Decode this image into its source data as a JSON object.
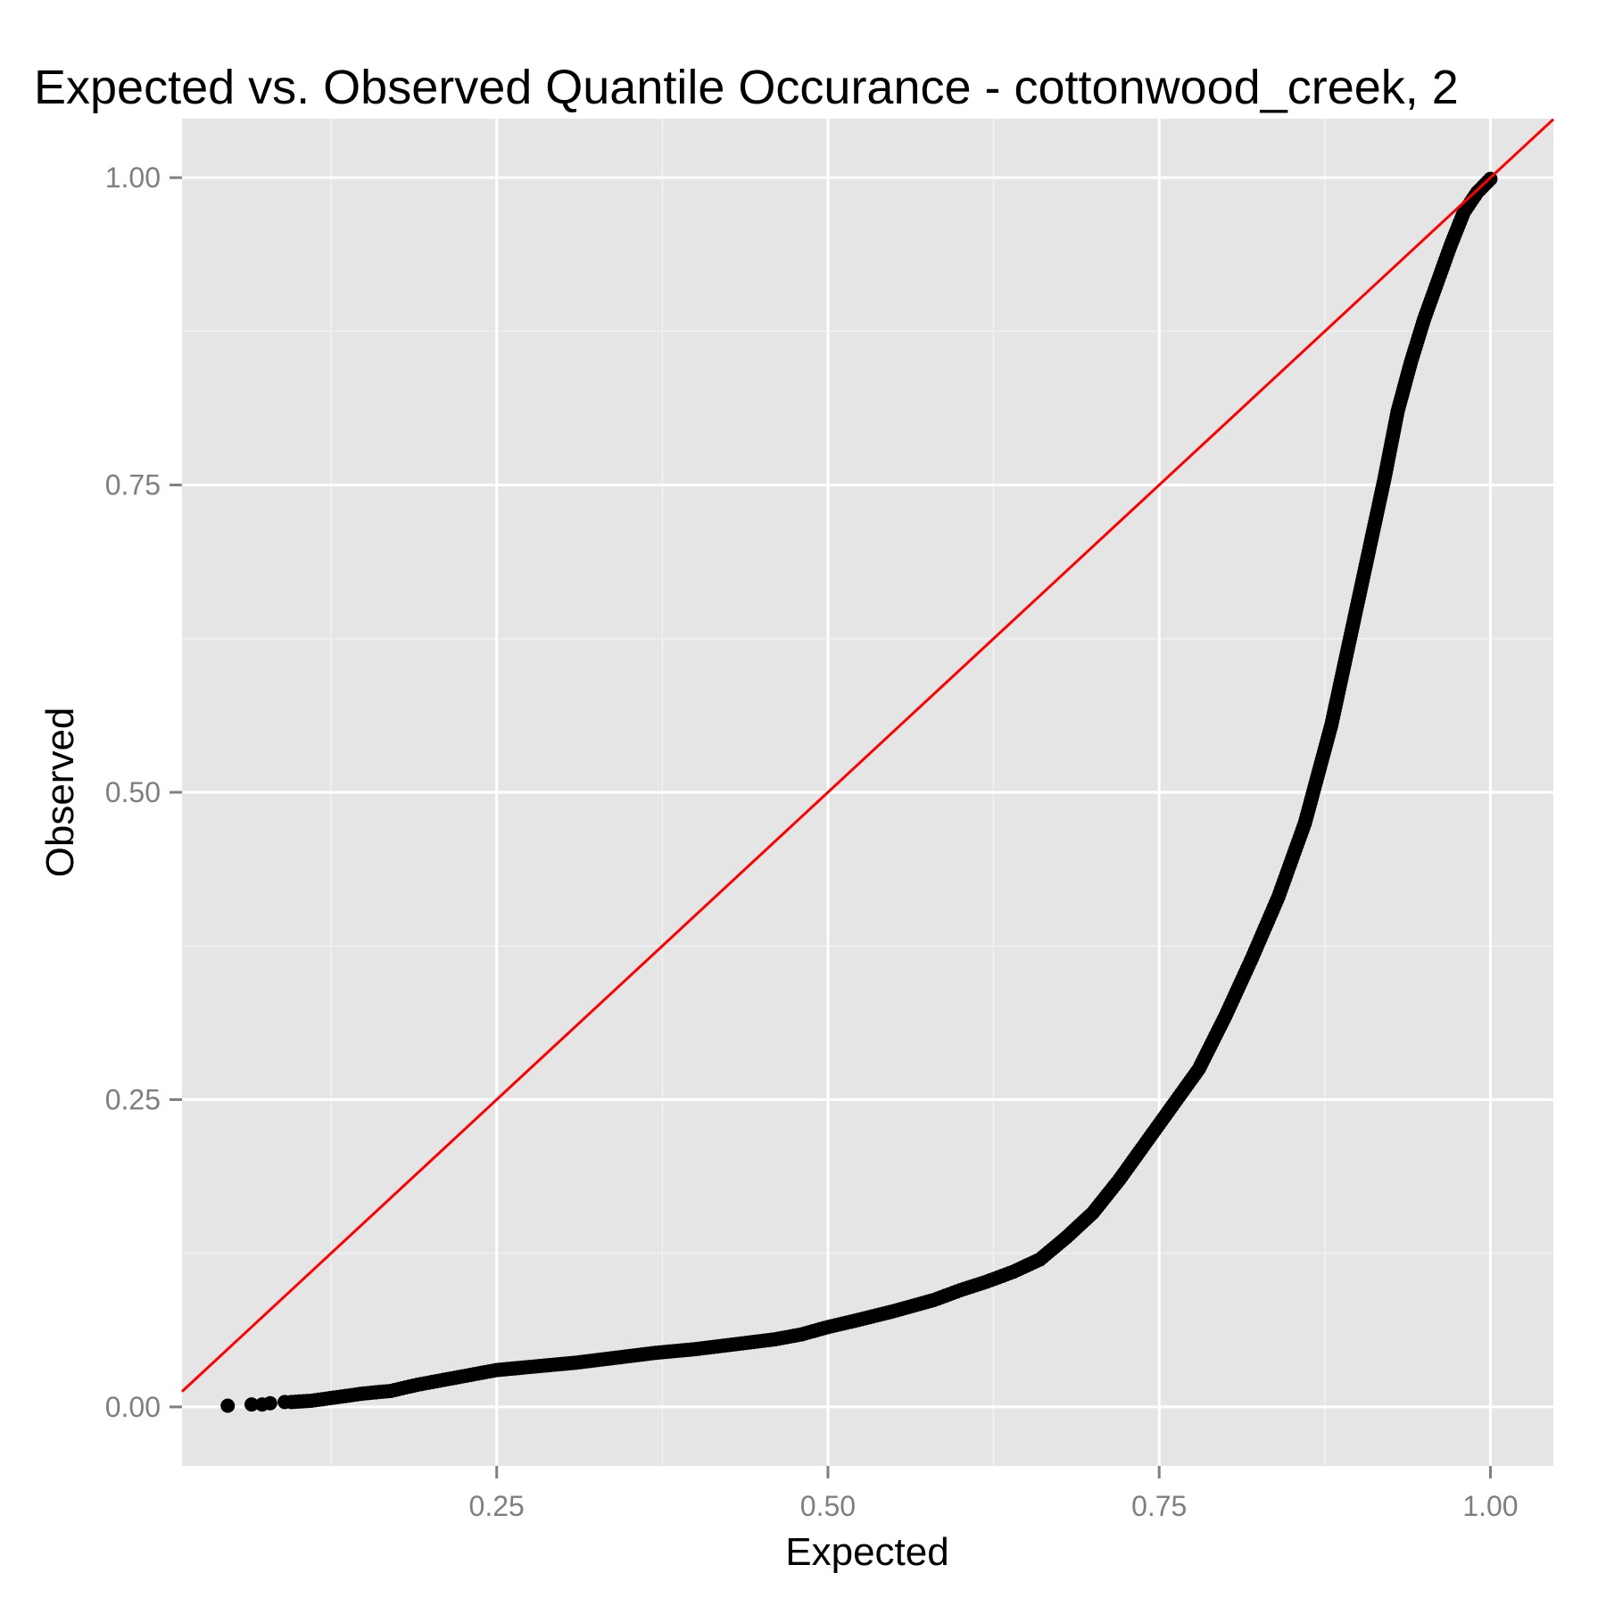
{
  "chart_data": {
    "type": "scatter",
    "title": "Expected vs. Observed Quantile Occurance - cottonwood_creek, 2",
    "xlabel": "Expected",
    "ylabel": "Observed",
    "xlim": [
      0.0125,
      1.0475
    ],
    "ylim": [
      -0.048,
      1.048
    ],
    "x_ticks": [
      0.25,
      0.5,
      0.75,
      1.0
    ],
    "x_tick_labels": [
      "0.25",
      "0.50",
      "0.75",
      "1.00"
    ],
    "y_ticks": [
      0.0,
      0.25,
      0.5,
      0.75,
      1.0
    ],
    "y_tick_labels": [
      "0.00",
      "0.25",
      "0.50",
      "0.75",
      "1.00"
    ],
    "grid": true,
    "background": "#e5e5e5",
    "point_color": "#000000",
    "reference_line": {
      "slope": 1,
      "intercept": 0,
      "color": "#ff0000"
    },
    "series": [
      {
        "x": [
          0.047,
          0.065,
          0.073,
          0.079,
          0.09,
          0.095,
          0.11,
          0.13,
          0.15,
          0.17,
          0.19,
          0.21,
          0.23,
          0.25,
          0.28,
          0.31,
          0.34,
          0.37,
          0.4,
          0.43,
          0.46,
          0.48,
          0.5,
          0.52,
          0.55,
          0.58,
          0.6,
          0.62,
          0.64,
          0.66,
          0.68,
          0.7,
          0.72,
          0.74,
          0.76,
          0.78,
          0.8,
          0.82,
          0.84,
          0.85,
          0.86,
          0.87,
          0.88,
          0.89,
          0.9,
          0.91,
          0.92,
          0.93,
          0.94,
          0.95,
          0.96,
          0.97,
          0.98,
          0.99,
          1.0
        ],
        "y": [
          0.001,
          0.002,
          0.002,
          0.003,
          0.004,
          0.004,
          0.005,
          0.008,
          0.011,
          0.013,
          0.018,
          0.022,
          0.026,
          0.03,
          0.033,
          0.036,
          0.04,
          0.044,
          0.047,
          0.051,
          0.055,
          0.059,
          0.065,
          0.07,
          0.078,
          0.087,
          0.095,
          0.102,
          0.11,
          0.12,
          0.138,
          0.158,
          0.185,
          0.215,
          0.245,
          0.275,
          0.318,
          0.365,
          0.415,
          0.445,
          0.475,
          0.515,
          0.555,
          0.605,
          0.655,
          0.705,
          0.755,
          0.81,
          0.85,
          0.885,
          0.915,
          0.945,
          0.972,
          0.988,
          0.999
        ]
      }
    ]
  }
}
